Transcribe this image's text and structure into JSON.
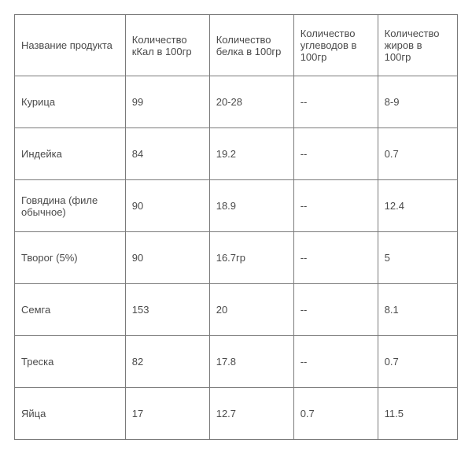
{
  "table": {
    "type": "table",
    "border_color": "#7a7a7a",
    "background_color": "#ffffff",
    "text_color": "#4a4a4a",
    "font_size": 13,
    "column_widths_pct": [
      25,
      19,
      19,
      19,
      18
    ],
    "columns": [
      "Название продукта",
      "Количество кКал в 100гр",
      "Количество белка в 100гр",
      "Количество углеводов в 100гр",
      "Количество жиров в 100гр"
    ],
    "rows": [
      [
        "Курица",
        "99",
        "20-28",
        "--",
        "8-9"
      ],
      [
        "Индейка",
        "84",
        "19.2",
        "--",
        "0.7"
      ],
      [
        "Говядина (филе обычное)",
        "90",
        "18.9",
        "--",
        "12.4"
      ],
      [
        "Творог (5%)",
        "90",
        "16.7гр",
        "--",
        "5"
      ],
      [
        "Семга",
        "153",
        "20",
        "--",
        "8.1"
      ],
      [
        "Треска",
        "82",
        "17.8",
        "--",
        "0.7"
      ],
      [
        "Яйца",
        "17",
        "12.7",
        "0.7",
        "11.5"
      ]
    ]
  }
}
